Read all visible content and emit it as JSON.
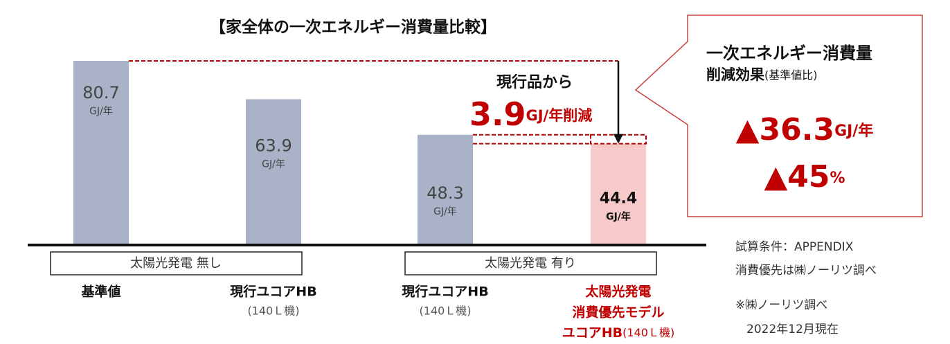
{
  "chart_data": {
    "type": "bar",
    "title": "【家全体の一次エネルギー消費量比較】",
    "categories": [
      [
        "基準値"
      ],
      [
        "現行ユコアHB",
        "(140Ｌ機)"
      ],
      [
        "現行ユコアHB",
        "(140Ｌ機)"
      ],
      [
        "太陽光発電",
        "消費優先モデル",
        "ユコアHB",
        "(140Ｌ機)"
      ]
    ],
    "values": [
      80.7,
      63.9,
      48.3,
      44.4
    ],
    "value_unit": "GJ/年",
    "colors": [
      "#a9b2c6",
      "#a9b2c6",
      "#a9b2c6",
      "#f8c9c9"
    ],
    "groups": [
      "太陽光発電 無し",
      "太陽光発電 有り"
    ],
    "annotation": {
      "lead": "現行品から",
      "value": 3.9,
      "unit": "GJ/年削減"
    },
    "callout": {
      "title": "一次エネルギー消費量",
      "subtitle": "削減効果",
      "note": "(基準値比)",
      "reduction": {
        "value": -36.3,
        "label": "▲36.3"
      },
      "reduction_unit": "GJ/年",
      "ratio": {
        "value": -45,
        "label": "▲45"
      },
      "ratio_unit": "%"
    },
    "notes": [
      "試算条件：APPENDIX",
      "消費優先は㈱ノーリツ調べ",
      "※㈱ノーリツ調べ",
      "2022年12月現在"
    ]
  }
}
